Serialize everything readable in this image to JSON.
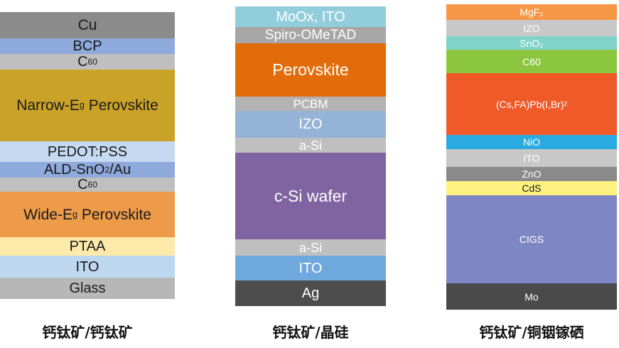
{
  "stacks": [
    {
      "caption": "钙钛矿/钙钛矿",
      "layers": [
        {
          "label": "Cu",
          "color": "#8b8b8b",
          "text_color": "#1a1a1a"
        },
        {
          "label": "BCP",
          "color": "#8ea9db",
          "text_color": "#1a1a1a"
        },
        {
          "label": "C",
          "sub": "60",
          "color": "#bfbfbf",
          "text_color": "#1a1a1a"
        },
        {
          "label": "Narrow-E",
          "sub": "g",
          "label_after": " Perovskite",
          "color": "#c9a227",
          "text_color": "#1a1a1a"
        },
        {
          "label": "PEDOT:PSS",
          "color": "#c5d9f1",
          "text_color": "#1a1a1a"
        },
        {
          "label": "ALD-SnO",
          "sub": "2",
          "label_after": "/Au",
          "color": "#8ea9db",
          "text_color": "#1a1a1a"
        },
        {
          "label": "C",
          "sub": "60",
          "color": "#bfbfbf",
          "text_color": "#1a1a1a"
        },
        {
          "label": "Wide-E",
          "sub": "g",
          "label_after": " Perovskite",
          "color": "#ed9b49",
          "text_color": "#1a1a1a"
        },
        {
          "label": "PTAA",
          "color": "#fde9a9",
          "text_color": "#1a1a1a"
        },
        {
          "label": "ITO",
          "color": "#bdd7ee",
          "text_color": "#1a1a1a"
        },
        {
          "label": "Glass",
          "color": "#b7b7b7",
          "text_color": "#1a1a1a"
        }
      ]
    },
    {
      "caption": "钙钛矿/晶硅",
      "layers": [
        {
          "label": "MoOx, ITO",
          "color": "#92cddc",
          "text_color": "#ffffff"
        },
        {
          "label": "Spiro-OMeTAD",
          "color": "#a6a6a6",
          "text_color": "#ffffff"
        },
        {
          "label": "Perovskite",
          "color": "#e36c0a",
          "text_color": "#ffffff"
        },
        {
          "label": "PCBM",
          "color": "#b3b3b3",
          "text_color": "#ffffff"
        },
        {
          "label": "IZO",
          "color": "#95b3d7",
          "text_color": "#ffffff"
        },
        {
          "label": "a-Si",
          "color": "#bfbfbf",
          "text_color": "#ffffff"
        },
        {
          "label": "c-Si wafer",
          "color": "#8064a2",
          "text_color": "#ffffff"
        },
        {
          "label": "a-Si",
          "color": "#bfbfbf",
          "text_color": "#ffffff"
        },
        {
          "label": "ITO",
          "color": "#6fa8dc",
          "text_color": "#ffffff"
        },
        {
          "label": "Ag",
          "color": "#4d4d4d",
          "text_color": "#ffffff"
        }
      ]
    },
    {
      "caption": "钙钛矿/铜铟镓硒",
      "layers": [
        {
          "label": "MgF₂",
          "color": "#f79646",
          "text_color": "#ffffff"
        },
        {
          "label": "IZO",
          "color": "#c8c8c8",
          "text_color": "#ffffff"
        },
        {
          "label": "SnO₂",
          "color": "#7fd3c8",
          "text_color": "#ffffff"
        },
        {
          "label": "C60",
          "color": "#8cc63f",
          "text_color": "#ffffff"
        },
        {
          "label": "(Cs,FA)Pb(I,Br)",
          "sub": "2",
          "color": "#f05a28",
          "text_color": "#ffffff"
        },
        {
          "label": "NiO",
          "color": "#29abe2",
          "text_color": "#ffffff"
        },
        {
          "label": "ITO",
          "color": "#c8c8c8",
          "text_color": "#ffffff"
        },
        {
          "label": "ZnO",
          "color": "#8a8a8a",
          "text_color": "#ffffff"
        },
        {
          "label": "CdS",
          "color": "#fff280",
          "text_color": "#1a1a1a"
        },
        {
          "label": "CIGS",
          "color": "#7f86c4",
          "text_color": "#ffffff"
        },
        {
          "label": "Mo",
          "color": "#4a4a4a",
          "text_color": "#ffffff"
        }
      ]
    }
  ]
}
